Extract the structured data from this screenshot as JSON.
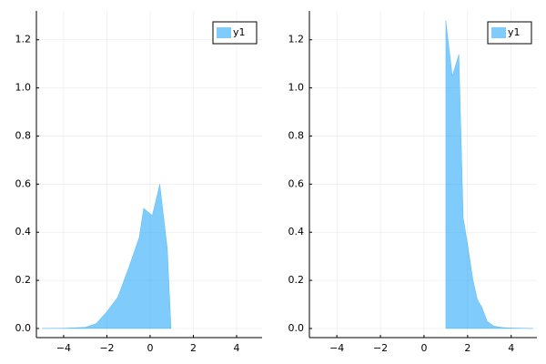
{
  "chart_data": [
    {
      "type": "area",
      "x": [
        -5,
        -4,
        -3,
        -2.5,
        -2,
        -1.5,
        -1,
        -0.5,
        -0.3,
        0.1,
        0.45,
        0.8,
        0.97
      ],
      "series": [
        {
          "name": "y1",
          "color": "#009afa",
          "alpha": 0.5,
          "values": [
            0,
            0.001,
            0.005,
            0.02,
            0.07,
            0.13,
            0.25,
            0.38,
            0.5,
            0.47,
            0.6,
            0.33,
            0
          ]
        }
      ],
      "xlim": [
        -5.26,
        5.18
      ],
      "xticks": [
        {
          "value": -4,
          "label": "−4"
        },
        {
          "value": -2,
          "label": "−2"
        },
        0,
        2,
        4
      ],
      "ylim": [
        -0.038,
        1.32
      ],
      "yticks": [
        {
          "value": 0,
          "label": "0.0"
        },
        0.2,
        0.4,
        0.6,
        0.8,
        {
          "value": 1,
          "label": "1.0"
        },
        1.2
      ],
      "grid": true,
      "legend": "top-right"
    },
    {
      "type": "area",
      "x": [
        1,
        1,
        1.3,
        1.6,
        1.8,
        2.0,
        2.25,
        2.45,
        2.65,
        2.9,
        3.2,
        3.6,
        4.0,
        5.0
      ],
      "series": [
        {
          "name": "y1",
          "color": "#009afa",
          "alpha": 0.5,
          "values": [
            0,
            1.28,
            1.05,
            1.14,
            0.46,
            0.35,
            0.2,
            0.12,
            0.09,
            0.03,
            0.01,
            0.004,
            0.002,
            0
          ]
        }
      ],
      "xlim": [
        -5.26,
        5.18
      ],
      "xticks": [
        {
          "value": -4,
          "label": "−4"
        },
        {
          "value": -2,
          "label": "−2"
        },
        0,
        2,
        4
      ],
      "ylim": [
        -0.038,
        1.32
      ],
      "yticks": [
        {
          "value": 0,
          "label": "0.0"
        },
        0.2,
        0.4,
        0.6,
        0.8,
        {
          "value": 1,
          "label": "1.0"
        },
        1.2
      ],
      "grid": true,
      "legend": "top-right"
    }
  ]
}
